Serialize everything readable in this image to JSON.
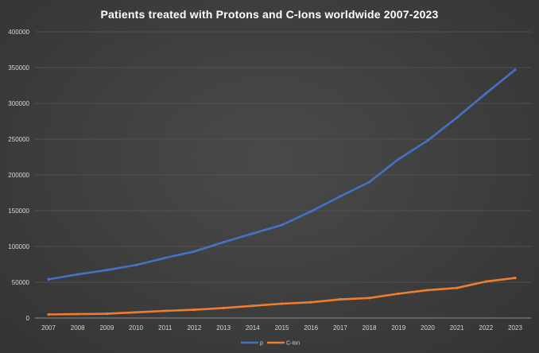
{
  "chart_data": {
    "type": "line",
    "title": "Patients treated with Protons and C-Ions worldwide 2007-2023",
    "xlabel": "",
    "ylabel": "",
    "categories": [
      "2007",
      "2008",
      "2009",
      "2010",
      "2011",
      "2012",
      "2013",
      "2014",
      "2015",
      "2016",
      "2017",
      "2018",
      "2019",
      "2020",
      "2021",
      "2022",
      "2023"
    ],
    "series": [
      {
        "name": "p",
        "color": "#4472c4",
        "values": [
          54000,
          61000,
          67000,
          74000,
          84000,
          93000,
          106000,
          118000,
          130000,
          149000,
          170000,
          190000,
          222000,
          248000,
          280000,
          314000,
          347000
        ]
      },
      {
        "name": "C-Ion",
        "color": "#ed7d31",
        "values": [
          5000,
          5500,
          6000,
          8000,
          10000,
          11500,
          14000,
          17000,
          20000,
          22000,
          26000,
          28000,
          34000,
          39000,
          42000,
          51000,
          56000
        ]
      }
    ],
    "ylim": [
      0,
      400000
    ],
    "yticks": [
      "0",
      "50000",
      "100000",
      "150000",
      "200000",
      "250000",
      "300000",
      "350000",
      "400000"
    ],
    "grid": true,
    "legend_position": "bottom"
  }
}
